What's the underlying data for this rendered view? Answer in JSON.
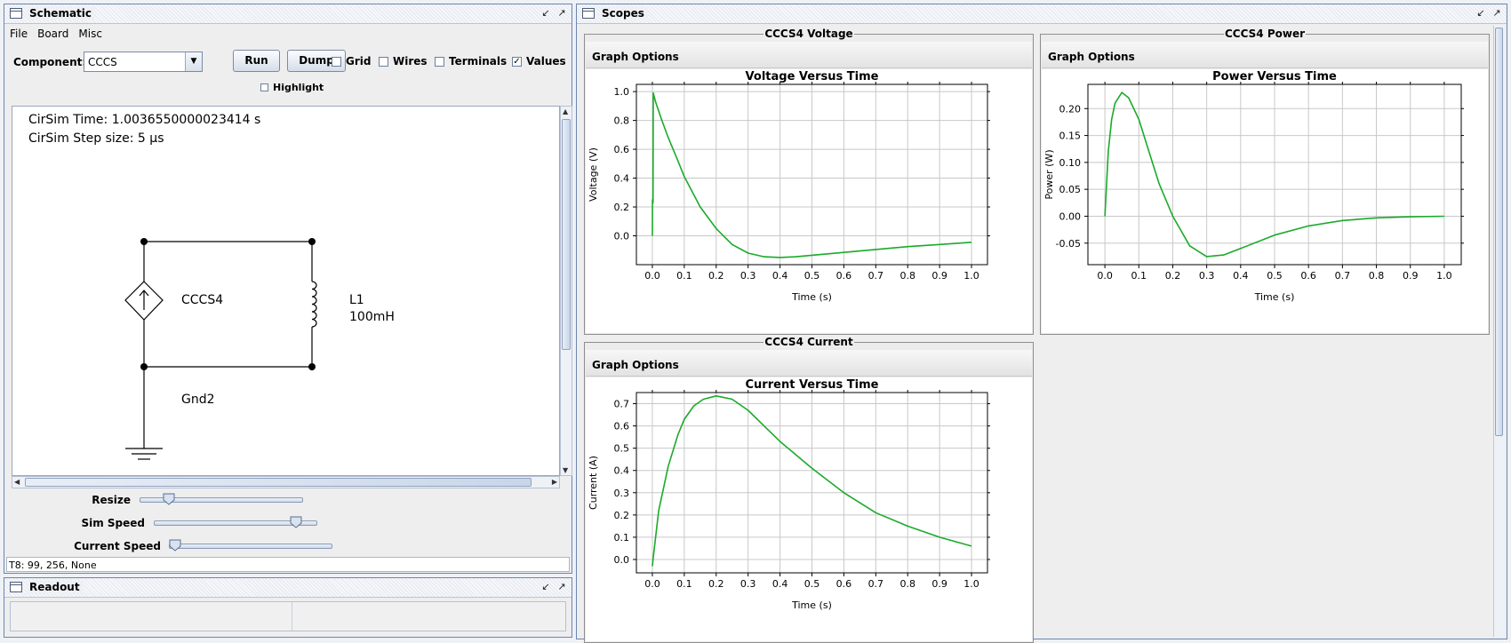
{
  "schematic": {
    "title": "Schematic",
    "menu": [
      "File",
      "Board",
      "Misc"
    ],
    "component_label": "Component:",
    "component_value": "CCCS",
    "run_label": "Run",
    "dump_label": "Dump",
    "grid_label": "Grid",
    "wires_label": "Wires",
    "terminals_label": "Terminals",
    "values_label": "Values",
    "highlight_label": "Highlight",
    "checks": {
      "grid": false,
      "wires": false,
      "terminals": false,
      "values": true,
      "highlight": false
    },
    "sim_time": "CirSim Time: 1.0036550000023414 s",
    "step_size": "CirSim Step size: 5 µs",
    "cccs_label": "CCCS4",
    "inductor_label": "L1",
    "inductor_value": "100mH",
    "ground_label": "Gnd2",
    "sliders": {
      "resize_label": "Resize",
      "resize_value": 0.15,
      "sim_speed_label": "Sim Speed",
      "sim_speed_value": 0.9,
      "current_speed_label": "Current Speed",
      "current_speed_value": 0.0
    },
    "status": "T8: 99, 256, None"
  },
  "readout": {
    "title": "Readout"
  },
  "scopes": {
    "title": "Scopes",
    "graph_options_label": "Graph Options",
    "panels": [
      {
        "title": "CCCS4 Voltage",
        "chart_title": "Voltage Versus Time",
        "xlabel": "Time (s)",
        "ylabel": "Voltage (V)",
        "series_color": "#1aaa2a"
      },
      {
        "title": "CCCS4 Power",
        "chart_title": "Power Versus Time",
        "xlabel": "Time (s)",
        "ylabel": "Power (W)",
        "series_color": "#1aaa2a"
      },
      {
        "title": "CCCS4 Current",
        "chart_title": "Current Versus Time",
        "xlabel": "Time (s)",
        "ylabel": "Current (A)",
        "series_color": "#1aaa2a"
      }
    ]
  },
  "chart_data": [
    {
      "type": "line",
      "title": "Voltage Versus Time",
      "xlabel": "Time (s)",
      "ylabel": "Voltage (V)",
      "xlim": [
        -0.05,
        1.05
      ],
      "ylim": [
        -0.2,
        1.05
      ],
      "xticks": [
        "0.0",
        "0.1",
        "0.2",
        "0.3",
        "0.4",
        "0.5",
        "0.6",
        "0.7",
        "0.8",
        "0.9",
        "1.0"
      ],
      "yticks": [
        "0.0",
        "0.2",
        "0.4",
        "0.6",
        "0.8",
        "1.0"
      ],
      "grid": true,
      "series": [
        {
          "x": [
            0,
            0.0005,
            0.002,
            0.003,
            0.01,
            0.03,
            0.05,
            0.08,
            0.1,
            0.15,
            0.2,
            0.25,
            0.3,
            0.35,
            0.4,
            0.45,
            0.5,
            0.6,
            0.7,
            0.8,
            0.9,
            1.0
          ],
          "values": [
            0.0,
            0.25,
            0.23,
            0.99,
            0.93,
            0.8,
            0.68,
            0.52,
            0.41,
            0.2,
            0.05,
            -0.06,
            -0.12,
            -0.145,
            -0.15,
            -0.145,
            -0.135,
            -0.115,
            -0.095,
            -0.075,
            -0.06,
            -0.045
          ]
        }
      ]
    },
    {
      "type": "line",
      "title": "Power Versus Time",
      "xlabel": "Time (s)",
      "ylabel": "Power (W)",
      "xlim": [
        -0.05,
        1.05
      ],
      "ylim": [
        -0.09,
        0.245
      ],
      "xticks": [
        "0.0",
        "0.1",
        "0.2",
        "0.3",
        "0.4",
        "0.5",
        "0.6",
        "0.7",
        "0.8",
        "0.9",
        "1.0"
      ],
      "yticks": [
        "-0.05",
        "0.00",
        "0.05",
        "0.10",
        "0.15",
        "0.20"
      ],
      "grid": true,
      "series": [
        {
          "x": [
            0,
            0.01,
            0.02,
            0.03,
            0.05,
            0.07,
            0.1,
            0.13,
            0.16,
            0.2,
            0.25,
            0.3,
            0.35,
            0.4,
            0.5,
            0.6,
            0.7,
            0.8,
            0.9,
            1.0
          ],
          "values": [
            0.0,
            0.12,
            0.18,
            0.21,
            0.23,
            0.22,
            0.18,
            0.12,
            0.06,
            0.0,
            -0.055,
            -0.075,
            -0.072,
            -0.06,
            -0.035,
            -0.018,
            -0.008,
            -0.003,
            -0.001,
            0.0
          ]
        }
      ]
    },
    {
      "type": "line",
      "title": "Current Versus Time",
      "xlabel": "Time (s)",
      "ylabel": "Current (A)",
      "xlim": [
        -0.05,
        1.05
      ],
      "ylim": [
        -0.06,
        0.75
      ],
      "xticks": [
        "0.0",
        "0.1",
        "0.2",
        "0.3",
        "0.4",
        "0.5",
        "0.6",
        "0.7",
        "0.8",
        "0.9",
        "1.0"
      ],
      "yticks": [
        "0.0",
        "0.1",
        "0.2",
        "0.3",
        "0.4",
        "0.5",
        "0.6",
        "0.7"
      ],
      "grid": true,
      "series": [
        {
          "x": [
            0,
            0.002,
            0.02,
            0.05,
            0.08,
            0.1,
            0.13,
            0.16,
            0.2,
            0.25,
            0.3,
            0.35,
            0.4,
            0.5,
            0.6,
            0.7,
            0.8,
            0.9,
            1.0
          ],
          "values": [
            -0.03,
            0.0,
            0.22,
            0.42,
            0.56,
            0.63,
            0.69,
            0.72,
            0.735,
            0.72,
            0.67,
            0.6,
            0.53,
            0.41,
            0.3,
            0.21,
            0.15,
            0.1,
            0.06
          ]
        }
      ]
    }
  ]
}
